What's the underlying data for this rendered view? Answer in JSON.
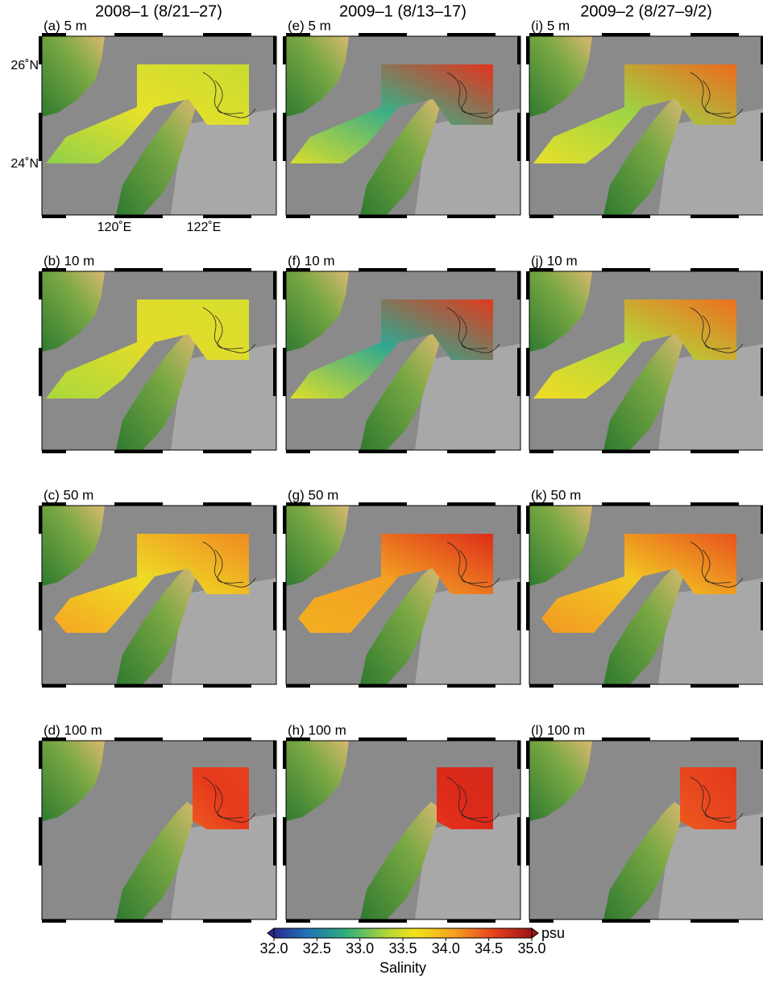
{
  "columns": [
    {
      "title": "2008–1 (8/21–27)",
      "panels": [
        "(a) 5 m",
        "(b) 10 m",
        "(c) 50 m",
        "(d) 100 m"
      ]
    },
    {
      "title": "2009–1 (8/13–17)",
      "panels": [
        "(e) 5 m",
        "(f) 10 m",
        "(g) 50 m",
        "(h) 100 m"
      ]
    },
    {
      "title": "2009–2 (8/27–9/2)",
      "panels": [
        "(i) 5 m",
        "(j) 10 m",
        "(k) 50 m",
        "(l) 100 m"
      ]
    }
  ],
  "latitude_labels": [
    "26˚N",
    "24˚N"
  ],
  "longitude_labels": [
    "120˚E",
    "122˚E"
  ],
  "colorbar": {
    "ticks": [
      {
        "value": 32,
        "label": "32.0"
      },
      {
        "value": 32.5,
        "label": "32.5"
      },
      {
        "value": 33,
        "label": "33.0"
      },
      {
        "value": 33.5,
        "label": "33.5"
      },
      {
        "value": 34,
        "label": "34.0"
      },
      {
        "value": 34.5,
        "label": "34.5"
      },
      {
        "value": 35,
        "label": "35.0"
      }
    ],
    "unit": "psu",
    "title": "Salinity"
  }
}
